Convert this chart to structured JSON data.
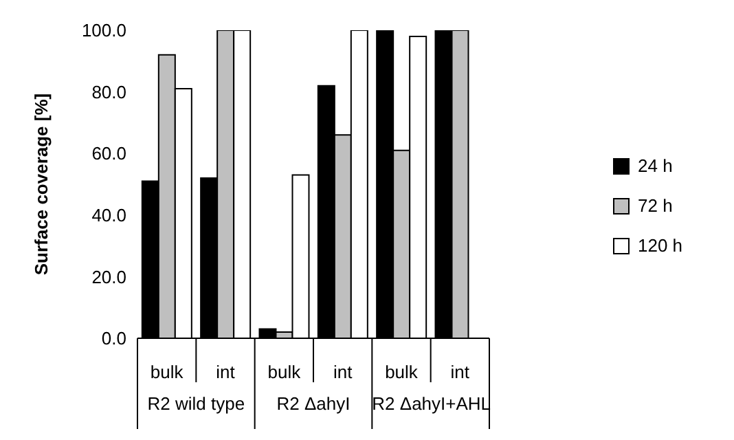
{
  "chart_data": {
    "type": "bar",
    "ylabel": "Surface coverage [%]",
    "categories": [
      "bulk",
      "int",
      "bulk",
      "int",
      "bulk",
      "int"
    ],
    "annotations": [
      "R2 wild type",
      "R2 ΔahyI",
      "R2 ΔahyI+AHL"
    ],
    "series": [
      {
        "name": "24 h",
        "color": "#000000",
        "values": [
          51,
          52,
          3,
          82,
          100,
          100
        ]
      },
      {
        "name": "72 h",
        "color": "#bfbfbf",
        "values": [
          92,
          100,
          2,
          66,
          61,
          100
        ]
      },
      {
        "name": "120 h",
        "color": "#ffffff",
        "values": [
          81,
          100,
          53,
          100,
          98,
          null
        ]
      }
    ],
    "ylim": [
      0,
      100
    ],
    "yticks": [
      {
        "value": 0,
        "label": "0.0"
      },
      {
        "value": 20,
        "label": "20.0"
      },
      {
        "value": 40,
        "label": "40.0"
      },
      {
        "value": 60,
        "label": "60.0"
      },
      {
        "value": 80,
        "label": "80.0"
      },
      {
        "value": 100,
        "label": "100.0"
      }
    ],
    "grid": false,
    "legend": "right"
  }
}
